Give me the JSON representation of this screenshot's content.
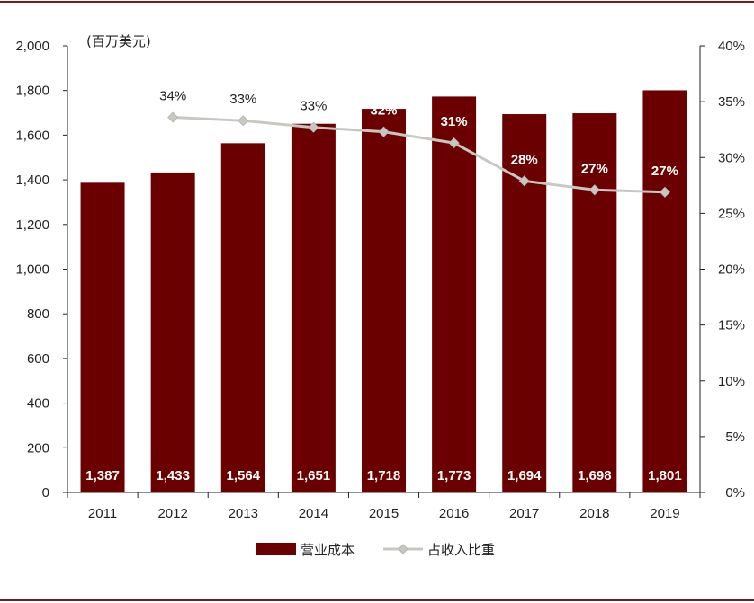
{
  "chart_data": {
    "type": "bar",
    "categories": [
      "2011",
      "2012",
      "2013",
      "2014",
      "2015",
      "2016",
      "2017",
      "2018",
      "2019"
    ],
    "series": [
      {
        "name": "营业成本",
        "type": "bar",
        "axis": "left",
        "values": [
          1387,
          1433,
          1564,
          1651,
          1718,
          1773,
          1694,
          1698,
          1801
        ],
        "labels": [
          "1,387",
          "1,433",
          "1,564",
          "1,651",
          "1,718",
          "1,773",
          "1,694",
          "1,698",
          "1,801"
        ]
      },
      {
        "name": "占收入比重",
        "type": "line",
        "axis": "right",
        "values": [
          null,
          33.6,
          33.3,
          32.7,
          32.3,
          31.3,
          27.9,
          27.1,
          26.9
        ],
        "labels": [
          "",
          "34%",
          "33%",
          "33%",
          "32%",
          "31%",
          "28%",
          "27%",
          "27%"
        ]
      }
    ],
    "left_axis": {
      "unit_label": "(百万美元)",
      "ylim": [
        0,
        2000
      ],
      "ticks": [
        0,
        200,
        400,
        600,
        800,
        1000,
        1200,
        1400,
        1600,
        1800,
        2000
      ],
      "tick_labels": [
        "0",
        "200",
        "400",
        "600",
        "800",
        "1,000",
        "1,200",
        "1,400",
        "1,600",
        "1,800",
        "2,000"
      ]
    },
    "right_axis": {
      "ylim": [
        0,
        40
      ],
      "ticks": [
        0,
        5,
        10,
        15,
        20,
        25,
        30,
        35,
        40
      ],
      "tick_labels": [
        "0%",
        "5%",
        "10%",
        "15%",
        "20%",
        "25%",
        "30%",
        "35%",
        "40%"
      ]
    },
    "legend": {
      "placement": "bottom-center",
      "bar_label": "营业成本",
      "line_label": "占收入比重"
    },
    "colors": {
      "bar": "#6b0000",
      "line": "#c8c8c3",
      "frame": "#7b1a1a"
    }
  }
}
